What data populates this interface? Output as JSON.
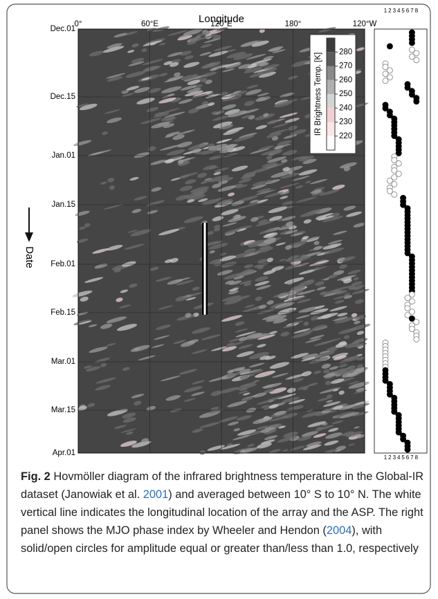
{
  "figure": {
    "x_axis_title": "Longitude",
    "x_ticks": [
      "0°",
      "60°E",
      "120°E",
      "180°",
      "120°W"
    ],
    "y_axis_title": "Date",
    "y_ticks": [
      "Dec.01",
      "Dec.15",
      "Jan.01",
      "Jan.15",
      "Feb.01",
      "Feb.15",
      "Mar.01",
      "Mar.15",
      "Apr.01"
    ],
    "colorbar": {
      "title": "IR Brightness Temp. [K]",
      "ticks": [
        280,
        270,
        260,
        250,
        240,
        230,
        220
      ]
    },
    "mjo": {
      "phase_ticks": [
        1,
        2,
        3,
        4,
        5,
        6,
        7,
        8
      ],
      "phase": [
        7,
        7,
        7,
        7,
        2,
        7,
        8,
        7,
        8,
        1,
        1,
        2,
        1,
        2,
        1,
        6,
        6,
        7,
        7,
        8,
        8,
        1,
        1,
        2,
        2,
        3,
        3,
        3,
        3,
        3,
        3,
        4,
        4,
        4,
        4,
        4,
        3,
        3,
        4,
        3,
        3,
        4,
        3,
        2,
        3,
        2,
        2,
        3,
        5,
        5,
        5,
        6,
        6,
        6,
        6,
        6,
        6,
        6,
        6,
        6,
        6,
        6,
        6,
        6,
        6,
        7,
        7,
        7,
        7,
        7,
        7,
        7,
        7,
        7,
        7,
        7,
        7,
        6,
        7,
        6,
        6,
        7,
        6,
        7,
        8,
        7,
        7,
        8,
        8,
        8,
        1,
        1,
        1,
        1,
        1,
        1,
        1,
        1,
        1,
        1,
        1,
        1,
        2,
        2,
        2,
        2,
        3,
        3,
        3,
        3,
        3,
        4,
        4,
        4,
        4,
        4,
        4,
        5,
        5,
        6,
        6,
        6
      ],
      "amplitude_ge_1": [
        true,
        true,
        true,
        true,
        true,
        false,
        false,
        false,
        false,
        false,
        false,
        false,
        false,
        false,
        false,
        true,
        true,
        true,
        true,
        true,
        true,
        true,
        true,
        true,
        true,
        true,
        true,
        true,
        true,
        true,
        true,
        true,
        true,
        true,
        true,
        true,
        false,
        false,
        false,
        false,
        false,
        false,
        false,
        false,
        false,
        false,
        false,
        false,
        true,
        true,
        true,
        true,
        true,
        true,
        true,
        true,
        true,
        true,
        true,
        true,
        true,
        true,
        true,
        true,
        true,
        true,
        true,
        true,
        true,
        true,
        true,
        true,
        true,
        true,
        true,
        true,
        false,
        false,
        false,
        false,
        false,
        false,
        false,
        true,
        false,
        false,
        false,
        false,
        false,
        false,
        false,
        false,
        false,
        false,
        false,
        false,
        false,
        false,
        true,
        true,
        true,
        true,
        true,
        true,
        true,
        true,
        true,
        true,
        true,
        true,
        true,
        true,
        true,
        true,
        true,
        true,
        true,
        true,
        true,
        true,
        true,
        true
      ]
    }
  },
  "caption": {
    "label": "Fig. 2",
    "parts": [
      "Hovmöller diagram of the infrared brightness temperature in the Global-IR dataset (Janowiak et al. ",
      "2001",
      ") and averaged between 10° S to 10° N. The white vertical line indicates the longitudinal location of the array and the ASP. The right panel shows the MJO phase index by Wheeler and Hendon (",
      "2004",
      "), with solid/open circles for amplitude equal or greater than/less than 1.0, respectively"
    ]
  }
}
